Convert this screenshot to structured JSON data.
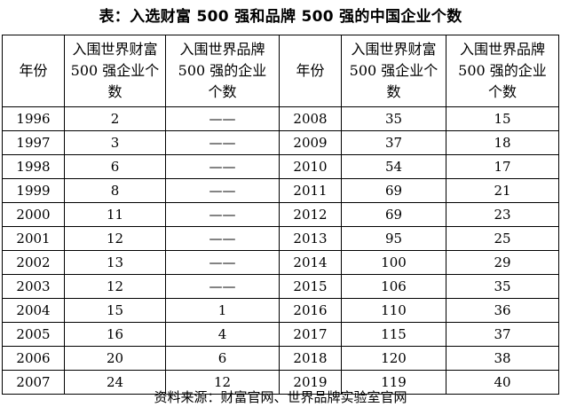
{
  "title": "表：入选财富 500 强和品牌 500 强的中国企业个数",
  "table": {
    "headers": [
      "年份",
      "入围世界财富 500 强企业个数",
      "入围世界品牌 500 强的企业个数",
      "年份",
      "入围世界财富 500 强企业个数",
      "入围世界品牌 500 强的企业个数"
    ],
    "rows": [
      [
        "1996",
        "2",
        "——",
        "2008",
        "35",
        "15"
      ],
      [
        "1997",
        "3",
        "——",
        "2009",
        "37",
        "18"
      ],
      [
        "1998",
        "6",
        "——",
        "2010",
        "54",
        "17"
      ],
      [
        "1999",
        "8",
        "——",
        "2011",
        "69",
        "21"
      ],
      [
        "2000",
        "11",
        "——",
        "2012",
        "69",
        "23"
      ],
      [
        "2001",
        "12",
        "——",
        "2013",
        "95",
        "25"
      ],
      [
        "2002",
        "13",
        "——",
        "2014",
        "100",
        "29"
      ],
      [
        "2003",
        "12",
        "——",
        "2015",
        "106",
        "35"
      ],
      [
        "2004",
        "15",
        "1",
        "2016",
        "110",
        "36"
      ],
      [
        "2005",
        "16",
        "4",
        "2017",
        "115",
        "37"
      ],
      [
        "2006",
        "20",
        "6",
        "2018",
        "120",
        "38"
      ],
      [
        "2007",
        "24",
        "12",
        "2019",
        "119",
        "40"
      ]
    ]
  },
  "source": "资料来源：财富官网、世界品牌实验室官网"
}
